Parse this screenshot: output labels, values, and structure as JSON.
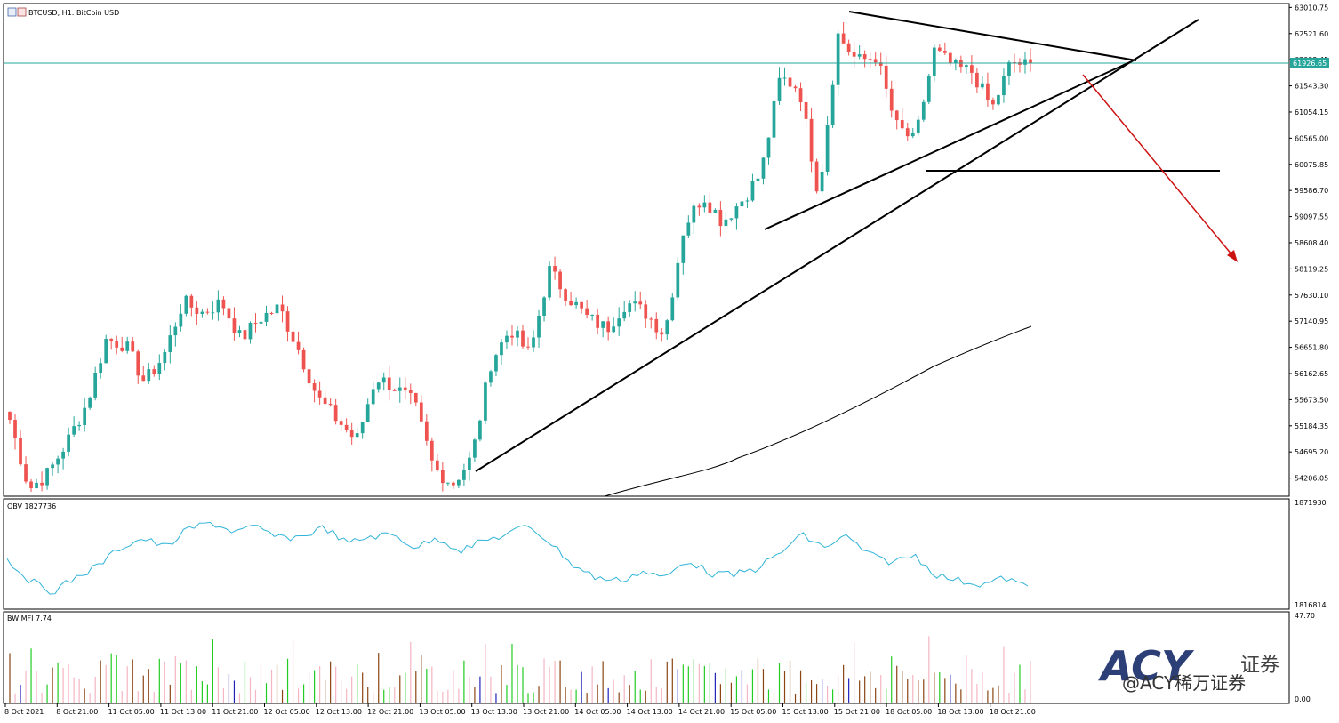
{
  "header": {
    "symbol_label": "BTCUSD, H1:  BitCoin USD"
  },
  "colors": {
    "bull": "#26a69a",
    "bear": "#ef5350",
    "price_line": "#26a69a",
    "obv_line": "#31b4d8",
    "trendline": "#000000",
    "forecast_arrow": "#cc1111",
    "mfi_green": "#22cc22",
    "mfi_blue": "#2222bb",
    "mfi_brown": "#8b4513",
    "mfi_pink": "#f4b6c2"
  },
  "price_axis": {
    "ticks": [
      "63010.75",
      "62521.60",
      "62032.45",
      "61543.30",
      "61054.15",
      "60565.00",
      "60075.85",
      "59586.70",
      "59097.55",
      "58608.40",
      "58119.25",
      "57630.10",
      "57140.95",
      "56651.80",
      "56162.65",
      "55673.50",
      "55184.35",
      "54695.20",
      "54206.05"
    ],
    "current_price": "61926.65",
    "ylim": [
      53900,
      63050
    ]
  },
  "time_axis": {
    "labels": [
      "8 Oct 2021",
      "8 Oct 21:00",
      "11 Oct 05:00",
      "11 Oct 13:00",
      "11 Oct 21:00",
      "12 Oct 05:00",
      "12 Oct 13:00",
      "12 Oct 21:00",
      "13 Oct 05:00",
      "13 Oct 13:00",
      "13 Oct 21:00",
      "14 Oct 05:00",
      "14 Oct 13:00",
      "14 Oct 21:00",
      "15 Oct 05:00",
      "15 Oct 13:00",
      "15 Oct 21:00",
      "18 Oct 05:00",
      "18 Oct 13:00",
      "18 Oct 21:00"
    ]
  },
  "chart_data": {
    "type": "candlestick",
    "price_path": [
      55300,
      54000,
      54300,
      54900,
      55600,
      56800,
      56700,
      56000,
      56500,
      57500,
      57300,
      57500,
      56800,
      57200,
      57400,
      56600,
      55700,
      55300,
      54900,
      56100,
      55900,
      55600,
      54400,
      54100,
      54600,
      56400,
      57000,
      56500,
      58100,
      57600,
      57200,
      57000,
      57500,
      57300,
      56900,
      58900,
      59500,
      59000,
      59400,
      59900,
      61700,
      61500,
      59500,
      62500,
      62000,
      62100,
      60800,
      60500,
      62200,
      61900,
      61800,
      61100,
      62000,
      61900
    ],
    "wick_range": [
      54000,
      62950
    ],
    "obv": {
      "label": "OBV 1827736",
      "ticks": [
        "1871930",
        "1816814"
      ],
      "path": [
        0.55,
        0.78,
        0.9,
        0.75,
        0.62,
        0.42,
        0.32,
        0.42,
        0.22,
        0.15,
        0.25,
        0.2,
        0.32,
        0.3,
        0.2,
        0.38,
        0.3,
        0.28,
        0.42,
        0.32,
        0.45,
        0.35,
        0.28,
        0.18,
        0.38,
        0.62,
        0.75,
        0.78,
        0.68,
        0.75,
        0.55,
        0.7,
        0.72,
        0.65,
        0.5,
        0.28,
        0.42,
        0.3,
        0.5,
        0.58,
        0.5,
        0.72,
        0.78,
        0.82,
        0.75,
        0.85
      ]
    },
    "mfi": {
      "label": "BW MFI 7.74",
      "ticks": [
        "47.70",
        "0.00"
      ]
    }
  },
  "watermark": {
    "logo_text": "ACY",
    "logo_cn": "证券",
    "credit": "@ACY稀万证券"
  }
}
